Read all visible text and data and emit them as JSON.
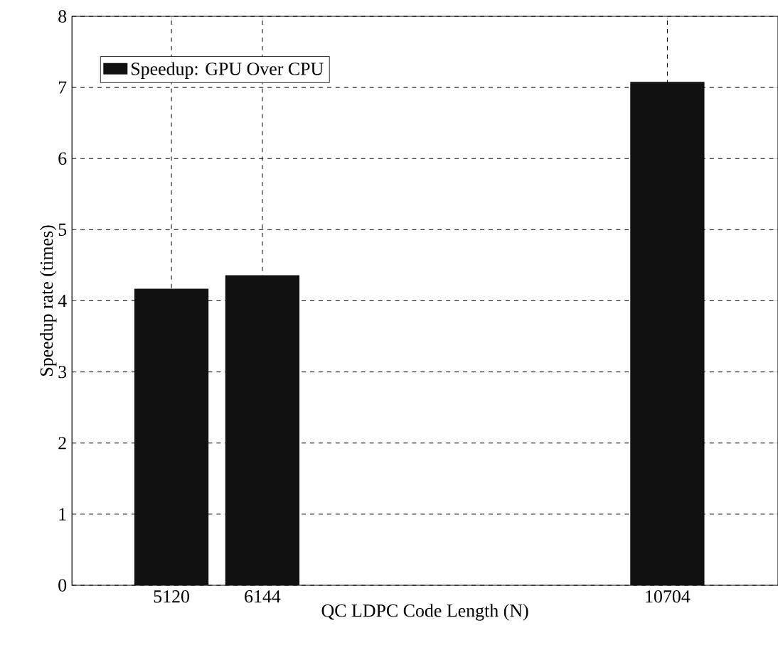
{
  "chart_data": {
    "type": "bar",
    "xlabel": "QC LDPC Code Length (N)",
    "ylabel": "Speedup rate (times)",
    "x": [
      5120,
      6144,
      10704
    ],
    "series": [
      {
        "name": "Speedup: GPU Over CPU",
        "color": "#111111",
        "values": [
          4.17,
          4.36,
          7.08
        ]
      }
    ],
    "xlim": [
      4000,
      11950
    ],
    "xticks": [
      5120,
      6144,
      10704
    ],
    "ylim": [
      0,
      8
    ],
    "yticks": [
      0,
      1,
      2,
      3,
      4,
      5,
      6,
      7,
      8
    ],
    "grid": true,
    "legend": "top left"
  }
}
